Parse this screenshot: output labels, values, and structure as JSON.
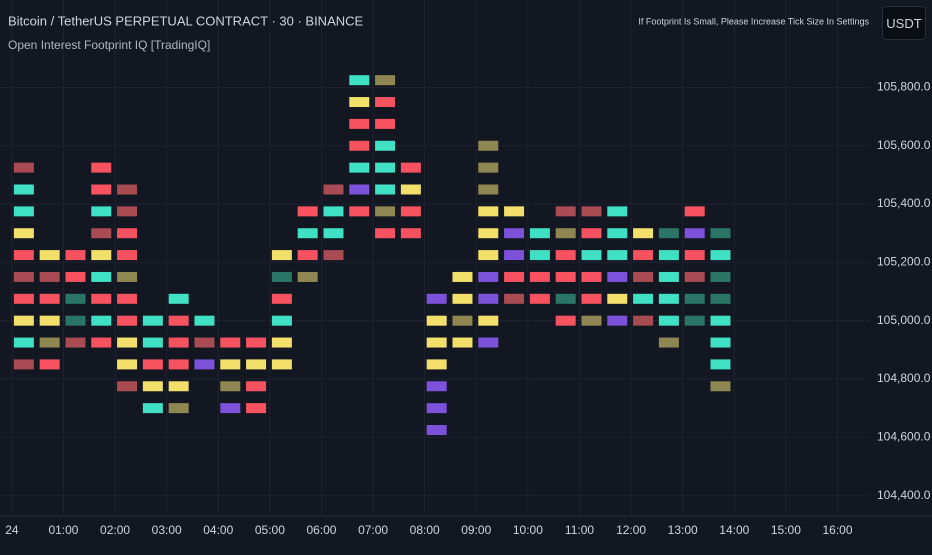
{
  "header": {
    "symbol": "Bitcoin / TetherUS PERPETUAL CONTRACT · 30 · BINANCE",
    "indicator": "Open Interest Footprint IQ [TradingIQ]",
    "notice": "If Footprint Is Small, Please Increase Tick Size In Settings",
    "currency": "USDT"
  },
  "chart_data": {
    "type": "footprint",
    "xlim": [
      -0.23,
      16.63
    ],
    "ylim": [
      104330,
      106100
    ],
    "xticks": [
      {
        "value": 0,
        "label": "24"
      },
      {
        "value": 1,
        "label": "01:00"
      },
      {
        "value": 2,
        "label": "02:00"
      },
      {
        "value": 3,
        "label": "03:00"
      },
      {
        "value": 4,
        "label": "04:00"
      },
      {
        "value": 5,
        "label": "05:00"
      },
      {
        "value": 6,
        "label": "06:00"
      },
      {
        "value": 7,
        "label": "07:00"
      },
      {
        "value": 8,
        "label": "08:00"
      },
      {
        "value": 9,
        "label": "09:00"
      },
      {
        "value": 10,
        "label": "10:00"
      },
      {
        "value": 11,
        "label": "11:00"
      },
      {
        "value": 12,
        "label": "12:00"
      },
      {
        "value": 13,
        "label": "13:00"
      },
      {
        "value": 14,
        "label": "14:00"
      },
      {
        "value": 15,
        "label": "15:00"
      },
      {
        "value": 16,
        "label": "16:00"
      }
    ],
    "yticks": [
      {
        "value": 104400,
        "label": "104,400.0"
      },
      {
        "value": 104600,
        "label": "104,600.0"
      },
      {
        "value": 104800,
        "label": "104,800.0"
      },
      {
        "value": 105000,
        "label": "105,000.0"
      },
      {
        "value": 105200,
        "label": "105,200.0"
      },
      {
        "value": 105400,
        "label": "105,400.0"
      },
      {
        "value": 105600,
        "label": "105,600.0"
      },
      {
        "value": 105800,
        "label": "105,800.0"
      }
    ],
    "grid": true,
    "columns": [
      {
        "x": 0,
        "prices": [
          105525,
          105450,
          105375,
          105300,
          105225,
          105150,
          105075,
          105000,
          104925,
          104850
        ],
        "colors": [
          "#a84b53",
          "#3fe0c4",
          "#3fe0c4",
          "#f2e06b",
          "#f7525f",
          "#a84b53",
          "#f7525f",
          "#f2e06b",
          "#3fe0c4",
          "#a84b53"
        ]
      },
      {
        "x": 0.5,
        "prices": [
          105225,
          105150,
          105075,
          105000,
          104925,
          104850
        ],
        "colors": [
          "#f2e06b",
          "#a84b53",
          "#f7525f",
          "#f2e06b",
          "#8f8752",
          "#f7525f"
        ]
      },
      {
        "x": 1,
        "prices": [
          105225,
          105150,
          105075,
          105000,
          104925
        ],
        "colors": [
          "#f7525f",
          "#f7525f",
          "#2b7566",
          "#2b7566",
          "#a84b53"
        ]
      },
      {
        "x": 1.5,
        "prices": [
          105525,
          105450,
          105375,
          105300,
          105225,
          105150,
          105075,
          105000,
          104925
        ],
        "colors": [
          "#f7525f",
          "#f7525f",
          "#3fe0c4",
          "#a84b53",
          "#f2e06b",
          "#3fe0c4",
          "#f7525f",
          "#3fe0c4",
          "#f7525f"
        ]
      },
      {
        "x": 2,
        "prices": [
          105450,
          105375,
          105300,
          105225,
          105150,
          105075,
          105000,
          104925,
          104850,
          104775
        ],
        "colors": [
          "#a84b53",
          "#a84b53",
          "#f7525f",
          "#f7525f",
          "#8f8752",
          "#f7525f",
          "#f7525f",
          "#f2e06b",
          "#f2e06b",
          "#a84b53"
        ]
      },
      {
        "x": 2.5,
        "prices": [
          105000,
          104925,
          104850,
          104775,
          104700
        ],
        "colors": [
          "#3fe0c4",
          "#3fe0c4",
          "#f7525f",
          "#f2e06b",
          "#3fe0c4"
        ]
      },
      {
        "x": 3,
        "prices": [
          105075,
          105000,
          104925,
          104850,
          104775,
          104700
        ],
        "colors": [
          "#3fe0c4",
          "#f7525f",
          "#f7525f",
          "#f7525f",
          "#f2e06b",
          "#8f8752"
        ]
      },
      {
        "x": 3.5,
        "prices": [
          105000,
          104925,
          104850
        ],
        "colors": [
          "#3fe0c4",
          "#a84b53",
          "#7b52d9"
        ]
      },
      {
        "x": 4,
        "prices": [
          104925,
          104850,
          104775,
          104700
        ],
        "colors": [
          "#f7525f",
          "#f2e06b",
          "#8f8752",
          "#7b52d9"
        ]
      },
      {
        "x": 4.5,
        "prices": [
          104925,
          104850,
          104775,
          104700
        ],
        "colors": [
          "#f7525f",
          "#f2e06b",
          "#f7525f",
          "#f7525f"
        ]
      },
      {
        "x": 5,
        "prices": [
          105225,
          105150,
          105075,
          105000,
          104925,
          104850
        ],
        "colors": [
          "#f2e06b",
          "#2b7566",
          "#f7525f",
          "#3fe0c4",
          "#f2e06b",
          "#f2e06b"
        ]
      },
      {
        "x": 5.5,
        "prices": [
          105375,
          105300,
          105225,
          105150
        ],
        "colors": [
          "#f7525f",
          "#3fe0c4",
          "#f7525f",
          "#8f8752"
        ]
      },
      {
        "x": 6,
        "prices": [
          105450,
          105375,
          105300,
          105225
        ],
        "colors": [
          "#a84b53",
          "#3fe0c4",
          "#3fe0c4",
          "#a84b53"
        ]
      },
      {
        "x": 6.5,
        "prices": [
          105825,
          105750,
          105675,
          105600,
          105525,
          105450,
          105375
        ],
        "colors": [
          "#3fe0c4",
          "#f2e06b",
          "#f7525f",
          "#f7525f",
          "#3fe0c4",
          "#7b52d9",
          "#f7525f"
        ]
      },
      {
        "x": 7,
        "prices": [
          105825,
          105750,
          105675,
          105600,
          105525,
          105450,
          105375,
          105300
        ],
        "colors": [
          "#8f8752",
          "#f7525f",
          "#f7525f",
          "#3fe0c4",
          "#3fe0c4",
          "#3fe0c4",
          "#8f8752",
          "#f7525f"
        ]
      },
      {
        "x": 7.5,
        "prices": [
          105525,
          105450,
          105375,
          105300
        ],
        "colors": [
          "#f7525f",
          "#f2e06b",
          "#f7525f",
          "#f7525f"
        ]
      },
      {
        "x": 8,
        "prices": [
          105075,
          105000,
          104925,
          104850,
          104775,
          104700,
          104625
        ],
        "colors": [
          "#7b52d9",
          "#f2e06b",
          "#f2e06b",
          "#f2e06b",
          "#7b52d9",
          "#7b52d9",
          "#7b52d9"
        ]
      },
      {
        "x": 8.5,
        "prices": [
          105150,
          105075,
          105000,
          104925
        ],
        "colors": [
          "#f2e06b",
          "#f2e06b",
          "#8f8752",
          "#f2e06b"
        ]
      },
      {
        "x": 9,
        "prices": [
          105600,
          105525,
          105450,
          105375,
          105300,
          105225,
          105150,
          105075,
          105000,
          104925
        ],
        "colors": [
          "#8f8752",
          "#8f8752",
          "#8f8752",
          "#f2e06b",
          "#f2e06b",
          "#f2e06b",
          "#7b52d9",
          "#7b52d9",
          "#f2e06b",
          "#7b52d9"
        ]
      },
      {
        "x": 9.5,
        "prices": [
          105375,
          105300,
          105225,
          105150,
          105075
        ],
        "colors": [
          "#f2e06b",
          "#7b52d9",
          "#7b52d9",
          "#f7525f",
          "#a84b53"
        ]
      },
      {
        "x": 10,
        "prices": [
          105300,
          105225,
          105150,
          105075
        ],
        "colors": [
          "#3fe0c4",
          "#3fe0c4",
          "#f7525f",
          "#f7525f"
        ]
      },
      {
        "x": 10.5,
        "prices": [
          105375,
          105300,
          105225,
          105150,
          105075,
          105000
        ],
        "colors": [
          "#a84b53",
          "#8f8752",
          "#f7525f",
          "#f7525f",
          "#2b7566",
          "#f7525f"
        ]
      },
      {
        "x": 11,
        "prices": [
          105375,
          105300,
          105225,
          105150,
          105075,
          105000
        ],
        "colors": [
          "#a84b53",
          "#f7525f",
          "#3fe0c4",
          "#f7525f",
          "#f7525f",
          "#8f8752"
        ]
      },
      {
        "x": 11.5,
        "prices": [
          105375,
          105300,
          105225,
          105150,
          105075,
          105000
        ],
        "colors": [
          "#3fe0c4",
          "#3fe0c4",
          "#3fe0c4",
          "#7b52d9",
          "#f2e06b",
          "#7b52d9"
        ]
      },
      {
        "x": 12,
        "prices": [
          105300,
          105225,
          105150,
          105075,
          105000
        ],
        "colors": [
          "#f2e06b",
          "#f7525f",
          "#a84b53",
          "#3fe0c4",
          "#a84b53"
        ]
      },
      {
        "x": 12.5,
        "prices": [
          105300,
          105225,
          105150,
          105075,
          105000,
          104925
        ],
        "colors": [
          "#2b7566",
          "#3fe0c4",
          "#3fe0c4",
          "#3fe0c4",
          "#3fe0c4",
          "#8f8752"
        ]
      },
      {
        "x": 13,
        "prices": [
          105375,
          105300,
          105225,
          105150,
          105075,
          105000
        ],
        "colors": [
          "#f7525f",
          "#7b52d9",
          "#f7525f",
          "#a84b53",
          "#2b7566",
          "#2b7566"
        ]
      },
      {
        "x": 13.5,
        "prices": [
          105300,
          105225,
          105150,
          105075,
          105000,
          104925,
          104850,
          104775
        ],
        "colors": [
          "#2b7566",
          "#3fe0c4",
          "#2b7566",
          "#2b7566",
          "#3fe0c4",
          "#3fe0c4",
          "#3fe0c4",
          "#8f8752"
        ]
      }
    ]
  }
}
